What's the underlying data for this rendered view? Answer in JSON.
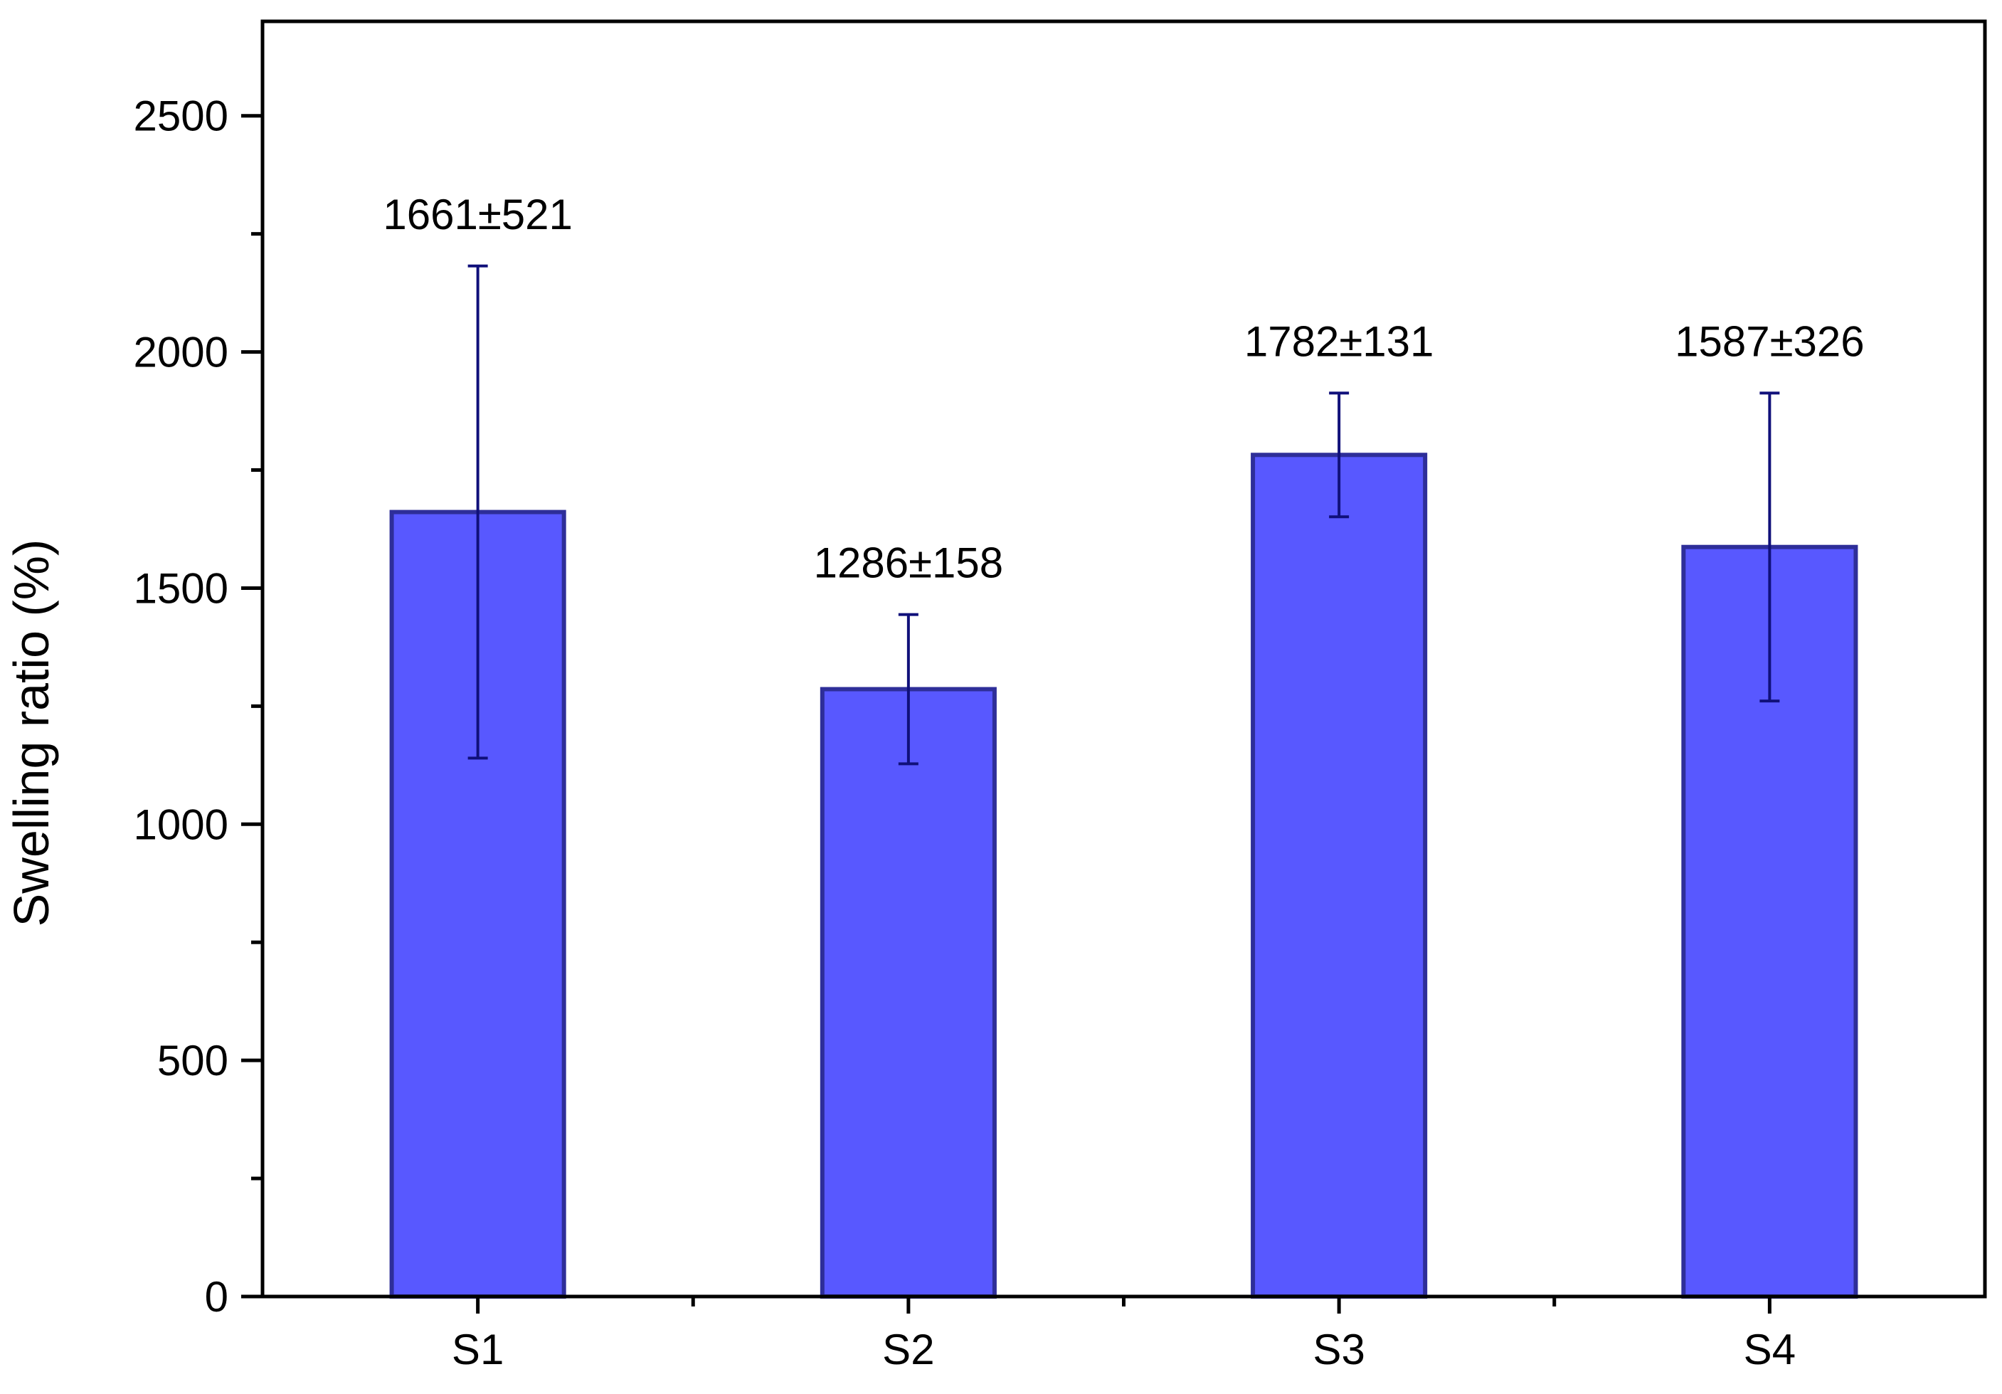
{
  "chart_data": {
    "type": "bar",
    "title": "",
    "xlabel": "",
    "ylabel": "Swelling ratio (%)",
    "categories": [
      "S1",
      "S2",
      "S3",
      "S4"
    ],
    "values": [
      1661,
      1286,
      1782,
      1587
    ],
    "errors": [
      521,
      158,
      131,
      326
    ],
    "data_labels": [
      "1661±521",
      "1286±158",
      "1782±131",
      "1587±326"
    ],
    "ylim": [
      0,
      2700
    ],
    "yticks": [
      0,
      500,
      1000,
      1500,
      2000,
      2500
    ],
    "y_minor_step": 250,
    "grid": false,
    "legend": "none",
    "colors": {
      "bar_fill": "#5858ff",
      "bar_edge": "#2e2e99",
      "error_bar": "#10107a",
      "axis": "#000000"
    }
  }
}
